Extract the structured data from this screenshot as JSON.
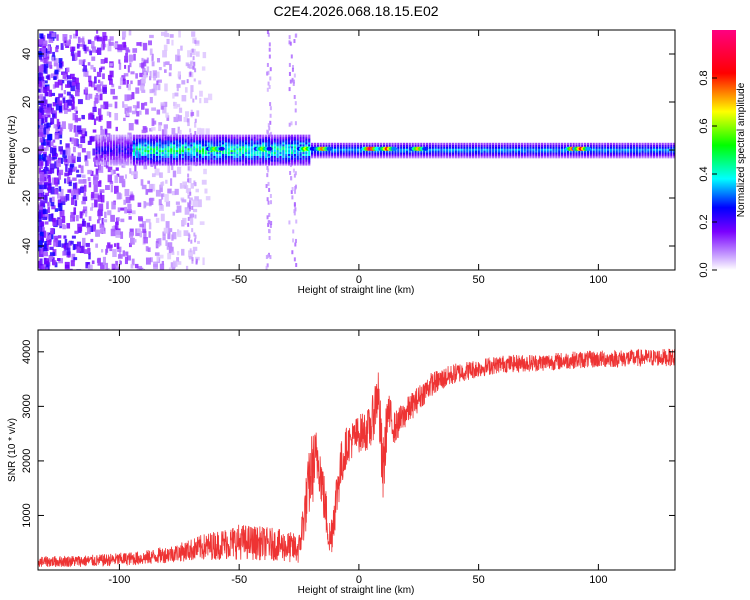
{
  "title": "C2E4.2026.068.18.15.E02",
  "chart_data": [
    {
      "type": "heatmap",
      "xlabel": "Height of straight line (km)",
      "ylabel": "Frequency (Hz)",
      "xlim": [
        -134,
        132
      ],
      "ylim": [
        -50,
        50
      ],
      "xticks": [
        -100,
        -50,
        0,
        50,
        100
      ],
      "yticks": [
        -40,
        -20,
        0,
        20,
        40
      ],
      "xtick_labels": [
        "-100",
        "-50",
        "0",
        "50",
        "100"
      ],
      "ytick_labels": [
        "-40",
        "-20",
        "0",
        "20",
        "40"
      ],
      "colorbar": {
        "label": "Normalized spectral amplitude",
        "range": [
          0,
          1
        ],
        "ticks": [
          0,
          0.2,
          0.4,
          0.6,
          0.8
        ],
        "tick_labels": [
          "0.0",
          "0.2",
          "0.4",
          "0.6",
          "0.8"
        ],
        "colormap": [
          "#ffffff",
          "#8000ff",
          "#0000ff",
          "#00ffff",
          "#00ff00",
          "#ffff00",
          "#ff0000",
          "#ff0080"
        ]
      },
      "features": [
        {
          "description_x_range": [
            -134,
            -65
          ],
          "noise": "scattered purple speckle across all frequencies"
        },
        {
          "description_x_range": [
            -105,
            -20
          ],
          "band_halfwidth_hz": 6,
          "max_amplitude": 0.55
        },
        {
          "description_x_range": [
            -20,
            132
          ],
          "band_halfwidth_hz": 3,
          "max_amplitude": 0.35
        },
        {
          "peak_x": 5,
          "peak_amplitude": 0.95
        },
        {
          "peak_x": 90,
          "peak_amplitude": 0.9
        }
      ]
    },
    {
      "type": "line",
      "xlabel": "Height of straight line (km)",
      "ylabel": "SNR (10 * v/v)",
      "xlim": [
        -134,
        132
      ],
      "ylim": [
        0,
        4400
      ],
      "xticks": [
        -100,
        -50,
        0,
        50,
        100
      ],
      "yticks": [
        1000,
        2000,
        3000,
        4000
      ],
      "xtick_labels": [
        "-100",
        "-50",
        "0",
        "50",
        "100"
      ],
      "ytick_labels": [
        "1000",
        "2000",
        "3000",
        "4000"
      ],
      "series": [
        {
          "name": "SNR",
          "color": "#ee3333",
          "x": [
            -134,
            -110,
            -90,
            -75,
            -65,
            -50,
            -35,
            -25,
            -20,
            -17,
            -12,
            -8,
            -5,
            0,
            5,
            8,
            10,
            12,
            15,
            20,
            30,
            40,
            50,
            60,
            75,
            90,
            110,
            132
          ],
          "values": [
            150,
            170,
            220,
            320,
            420,
            520,
            470,
            380,
            1800,
            2100,
            500,
            1800,
            2300,
            2500,
            2600,
            3300,
            1700,
            2900,
            2600,
            2900,
            3400,
            3600,
            3700,
            3780,
            3800,
            3850,
            3880,
            3900
          ],
          "noise": [
            100,
            110,
            130,
            170,
            240,
            330,
            300,
            280,
            700,
            550,
            400,
            500,
            350,
            350,
            400,
            550,
            700,
            400,
            300,
            260,
            220,
            190,
            170,
            160,
            160,
            160,
            160,
            160
          ]
        }
      ]
    }
  ]
}
